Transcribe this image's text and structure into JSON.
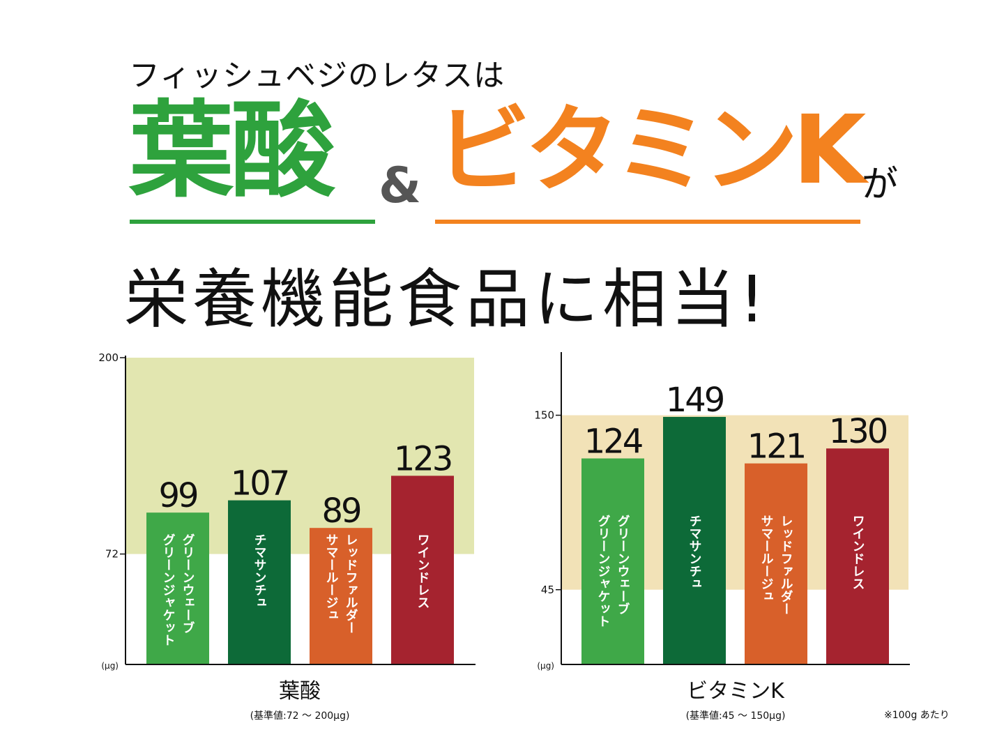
{
  "header": {
    "subtitle": "フィッシュベジのレタスは",
    "keyword_left": "葉酸",
    "ampersand": "&",
    "keyword_right": "ビタミンK",
    "particle": "が",
    "headline": "栄養機能食品に相当!",
    "colors": {
      "left": "#2ea23d",
      "right": "#f3821f"
    }
  },
  "footnote": "※100g あたり",
  "chart_data": [
    {
      "type": "bar",
      "title": "葉酸",
      "subtitle": "(基準値:72 〜 200μg)",
      "ylabel": "(μg)",
      "ylim": [
        0,
        200
      ],
      "yticks": [
        72,
        200
      ],
      "reference_band": [
        72,
        200
      ],
      "band_color": "#e2e6b0",
      "categories": [
        "グリーンウェーブ\nグリーンジャケット",
        "チマサンチュ",
        "レッドファルダー\nサマールージュ",
        "ワインドレス"
      ],
      "values": [
        99,
        107,
        89,
        123
      ],
      "colors": [
        "#3fa848",
        "#0d6a38",
        "#d8602a",
        "#a5232f"
      ]
    },
    {
      "type": "bar",
      "title": "ビタミンK",
      "subtitle": "(基準値:45 〜 150μg)",
      "ylabel": "(μg)",
      "ylim": [
        0,
        188
      ],
      "yticks": [
        45,
        150
      ],
      "reference_band": [
        45,
        150
      ],
      "band_color": "#f2e2b7",
      "categories": [
        "グリーンウェーブ\nグリーンジャケット",
        "チマサンチュ",
        "レッドファルダー\nサマールージュ",
        "ワインドレス"
      ],
      "values": [
        124,
        149,
        121,
        130
      ],
      "colors": [
        "#3fa848",
        "#0d6a38",
        "#d8602a",
        "#a5232f"
      ]
    }
  ]
}
